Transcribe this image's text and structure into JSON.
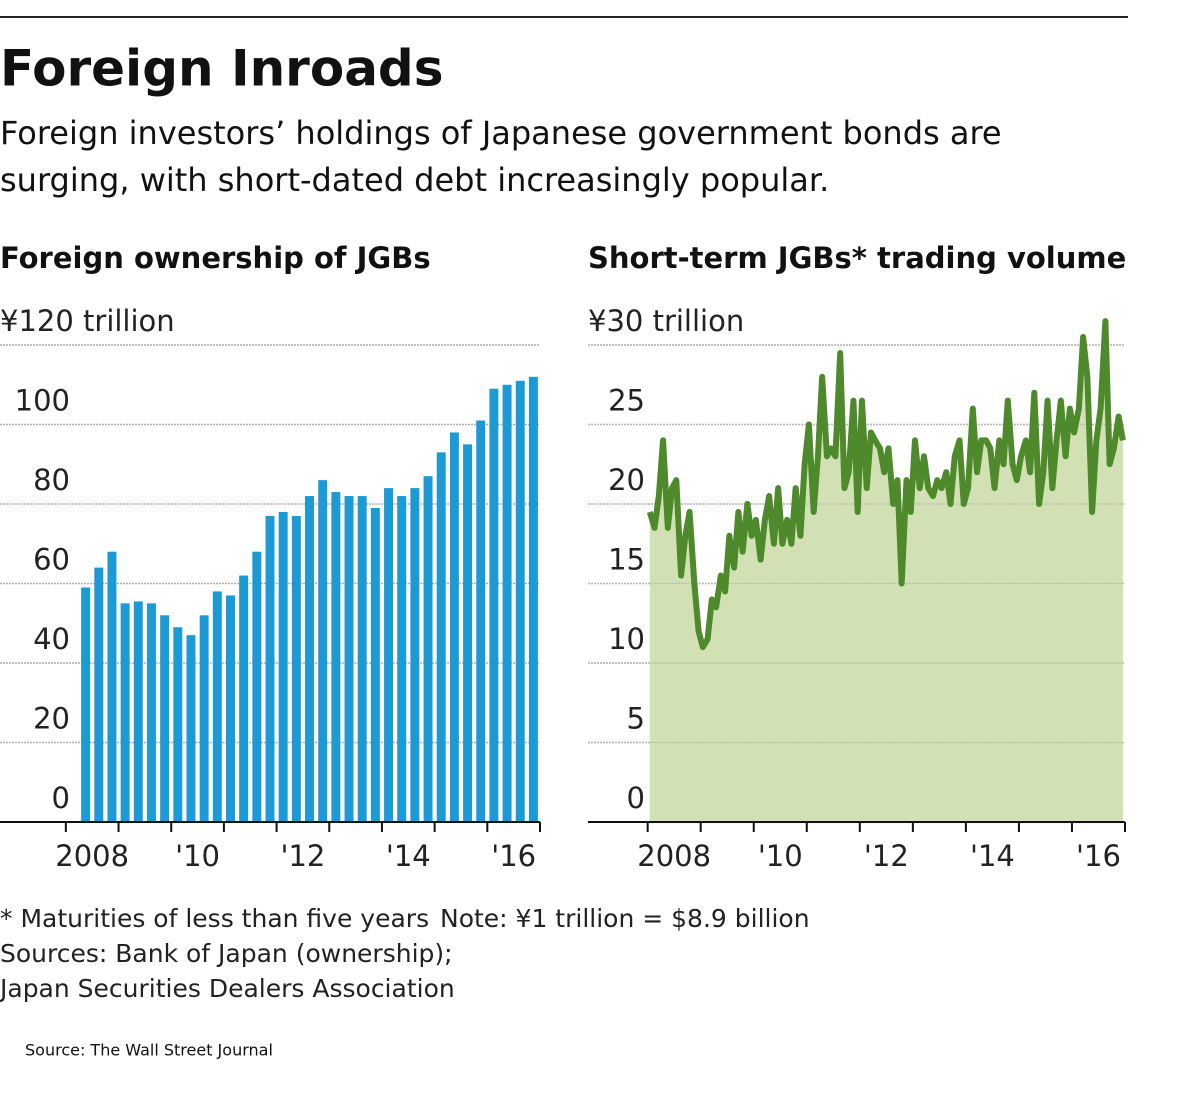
{
  "title": "Foreign Inroads",
  "subtitle": [
    "Foreign investors’ holdings of Japanese government bonds are",
    "surging, with short-dated debt increasingly popular."
  ],
  "footnotes": [
    "* Maturities of less than five years",
    "Note: ¥1 trillion = $8.9 billion",
    "Sources: Bank of Japan (ownership);",
    "Japan Securities Dealers Association"
  ],
  "source": "Source: The Wall Street Journal",
  "chart_data": [
    {
      "type": "bar",
      "title": "Foreign ownership of JGBs",
      "color": "#1b9ad6",
      "grid": true,
      "x": [
        2008.375,
        2008.625,
        2008.875,
        2009.125,
        2009.375,
        2009.625,
        2009.875,
        2010.125,
        2010.375,
        2010.625,
        2010.875,
        2011.125,
        2011.375,
        2011.625,
        2011.875,
        2012.125,
        2012.375,
        2012.625,
        2012.875,
        2013.125,
        2013.375,
        2013.625,
        2013.875,
        2014.125,
        2014.375,
        2014.625,
        2014.875,
        2015.125,
        2015.375,
        2015.625,
        2015.875,
        2016.125,
        2016.375,
        2016.625,
        2016.875
      ],
      "values": [
        59,
        64,
        68,
        55,
        55.5,
        55,
        52,
        49,
        47,
        52,
        58,
        57,
        62,
        68,
        77,
        78,
        77,
        82,
        86,
        83,
        82,
        82,
        79,
        84,
        82,
        84,
        87,
        93,
        98,
        95,
        101,
        109,
        110,
        111,
        112
      ],
      "xlim": [
        2006.75,
        2017
      ],
      "xticks": [
        {
          "value": 2008.5,
          "label": "2008"
        },
        {
          "value": 2010.5,
          "label": "'10"
        },
        {
          "value": 2012.5,
          "label": "'12"
        },
        {
          "value": 2014.5,
          "label": "'14"
        },
        {
          "value": 2016.5,
          "label": "'16"
        }
      ],
      "xtick_marks": [
        2008,
        2009,
        2010,
        2011,
        2012,
        2013,
        2014,
        2015,
        2016,
        2017
      ],
      "ylim": [
        0,
        120
      ],
      "yticks": [
        0,
        20,
        40,
        60,
        80,
        100,
        {
          "value": 120,
          "label": "¥120 trillion"
        }
      ]
    },
    {
      "type": "area",
      "title": "Short-term JGBs* trading volume",
      "color": "#4e8a2c",
      "fill": "#d2e1b3",
      "grid": true,
      "x": [
        2008.04,
        2008.13,
        2008.21,
        2008.29,
        2008.38,
        2008.46,
        2008.54,
        2008.63,
        2008.71,
        2008.79,
        2008.88,
        2008.96,
        2009.04,
        2009.13,
        2009.21,
        2009.29,
        2009.38,
        2009.46,
        2009.54,
        2009.63,
        2009.71,
        2009.79,
        2009.88,
        2009.96,
        2010.04,
        2010.13,
        2010.21,
        2010.29,
        2010.38,
        2010.46,
        2010.54,
        2010.63,
        2010.71,
        2010.79,
        2010.88,
        2010.96,
        2011.04,
        2011.13,
        2011.21,
        2011.29,
        2011.38,
        2011.46,
        2011.54,
        2011.63,
        2011.71,
        2011.79,
        2011.88,
        2011.96,
        2012.04,
        2012.13,
        2012.21,
        2012.29,
        2012.38,
        2012.46,
        2012.54,
        2012.63,
        2012.71,
        2012.79,
        2012.88,
        2012.96,
        2013.04,
        2013.13,
        2013.21,
        2013.29,
        2013.38,
        2013.46,
        2013.54,
        2013.63,
        2013.71,
        2013.79,
        2013.88,
        2013.96,
        2014.04,
        2014.13,
        2014.21,
        2014.29,
        2014.38,
        2014.46,
        2014.54,
        2014.63,
        2014.71,
        2014.79,
        2014.88,
        2014.96,
        2015.04,
        2015.13,
        2015.21,
        2015.29,
        2015.38,
        2015.46,
        2015.54,
        2015.63,
        2015.71,
        2015.79,
        2015.88,
        2015.96,
        2016.04,
        2016.13,
        2016.21,
        2016.29,
        2016.38,
        2016.46,
        2016.54,
        2016.63,
        2016.71,
        2016.79,
        2016.88,
        2016.96
      ],
      "values": [
        19.5,
        18.5,
        20.5,
        24,
        18.5,
        21,
        21.5,
        15.5,
        18,
        19.5,
        15,
        12,
        11,
        11.5,
        14,
        13.5,
        15.5,
        14.5,
        18,
        16,
        19.5,
        17,
        20,
        18,
        19,
        16.5,
        19,
        20.5,
        17.5,
        21,
        17.5,
        19,
        17.5,
        21,
        18,
        22.5,
        25,
        19.5,
        23,
        28,
        23,
        23.5,
        23,
        29.5,
        21,
        22,
        26.5,
        19.5,
        26.5,
        21,
        24.5,
        24,
        23.5,
        22,
        23.5,
        20,
        21.5,
        15,
        21.5,
        19.5,
        24,
        21,
        23,
        21,
        20.5,
        21.5,
        21,
        22,
        20,
        23,
        24,
        20,
        21,
        26,
        22,
        24,
        24,
        23.5,
        21,
        24,
        22.5,
        26.5,
        22.5,
        21.5,
        23,
        24,
        22,
        27,
        20,
        22,
        26.5,
        21,
        24,
        26.5,
        23,
        26,
        24.5,
        26,
        30.5,
        28,
        19.5,
        24,
        26,
        31.5,
        22.5,
        23.5,
        25.5,
        24
      ],
      "xlim": [
        2006.875,
        2017
      ],
      "xticks": [
        {
          "value": 2008.5,
          "label": "2008"
        },
        {
          "value": 2010.5,
          "label": "'10"
        },
        {
          "value": 2012.5,
          "label": "'12"
        },
        {
          "value": 2014.5,
          "label": "'14"
        },
        {
          "value": 2016.5,
          "label": "'16"
        }
      ],
      "xtick_marks": [
        2008,
        2009,
        2010,
        2011,
        2012,
        2013,
        2014,
        2015,
        2016,
        2017
      ],
      "ylim": [
        0,
        30
      ],
      "yticks": [
        0,
        5,
        10,
        15,
        20,
        25,
        {
          "value": 30,
          "label": "¥30 trillion"
        }
      ]
    }
  ]
}
